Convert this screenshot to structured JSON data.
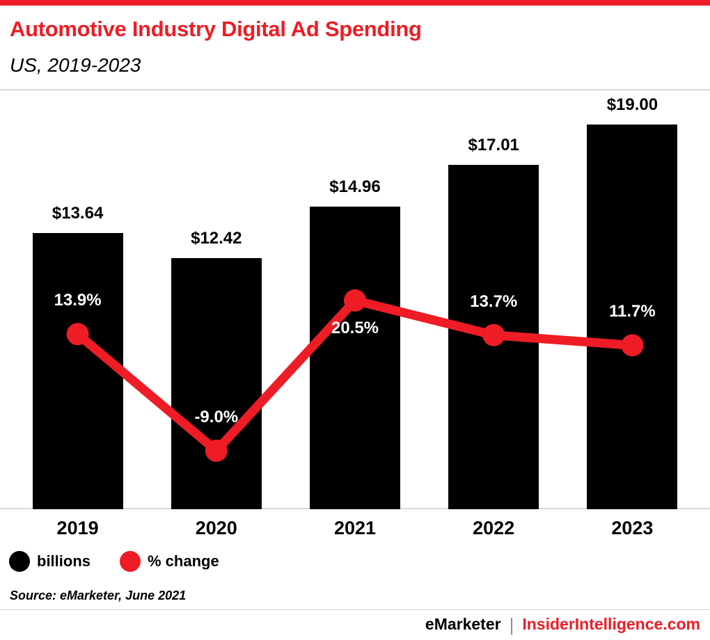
{
  "page": {
    "title": "Automotive Industry Digital Ad Spending",
    "subtitle": "US, 2019-2023",
    "source": "Source: eMarketer, June 2021",
    "footer": {
      "brand": "eMarketer",
      "separator": "|",
      "site": "InsiderIntelligence.com"
    }
  },
  "colors": {
    "accent": "#ee1c25",
    "bar": "#000000",
    "divider": "#d9d9d9",
    "footer_separator": "#919191"
  },
  "chart_data": {
    "type": "bar",
    "title": "Automotive Industry Digital Ad Spending",
    "subtitle": "US, 2019-2023",
    "categories": [
      "2019",
      "2020",
      "2021",
      "2022",
      "2023"
    ],
    "series": [
      {
        "name": "billions",
        "type": "bar",
        "color": "#000000",
        "values": [
          13.64,
          12.42,
          14.96,
          17.01,
          19.0
        ],
        "labels": [
          "$13.64",
          "$12.42",
          "$14.96",
          "$17.01",
          "$19.00"
        ]
      },
      {
        "name": "% change",
        "type": "line",
        "color": "#ee1c25",
        "values": [
          13.9,
          -9.0,
          20.5,
          13.7,
          11.7
        ],
        "labels": [
          "13.9%",
          "-9.0%",
          "20.5%",
          "13.7%",
          "11.7%"
        ],
        "label_side": [
          "above",
          "above",
          "below",
          "above",
          "above"
        ]
      }
    ],
    "legend": [
      {
        "label": "billions",
        "color": "#000000"
      },
      {
        "label": "% change",
        "color": "#ee1c25"
      }
    ],
    "legend_position": "bottom-left",
    "grid": false,
    "axes": {
      "x_ticks_shown": true,
      "y_axis_shown": false
    },
    "bar_axis_implied_range": [
      0,
      20
    ],
    "line_axis_unit": "percent"
  }
}
